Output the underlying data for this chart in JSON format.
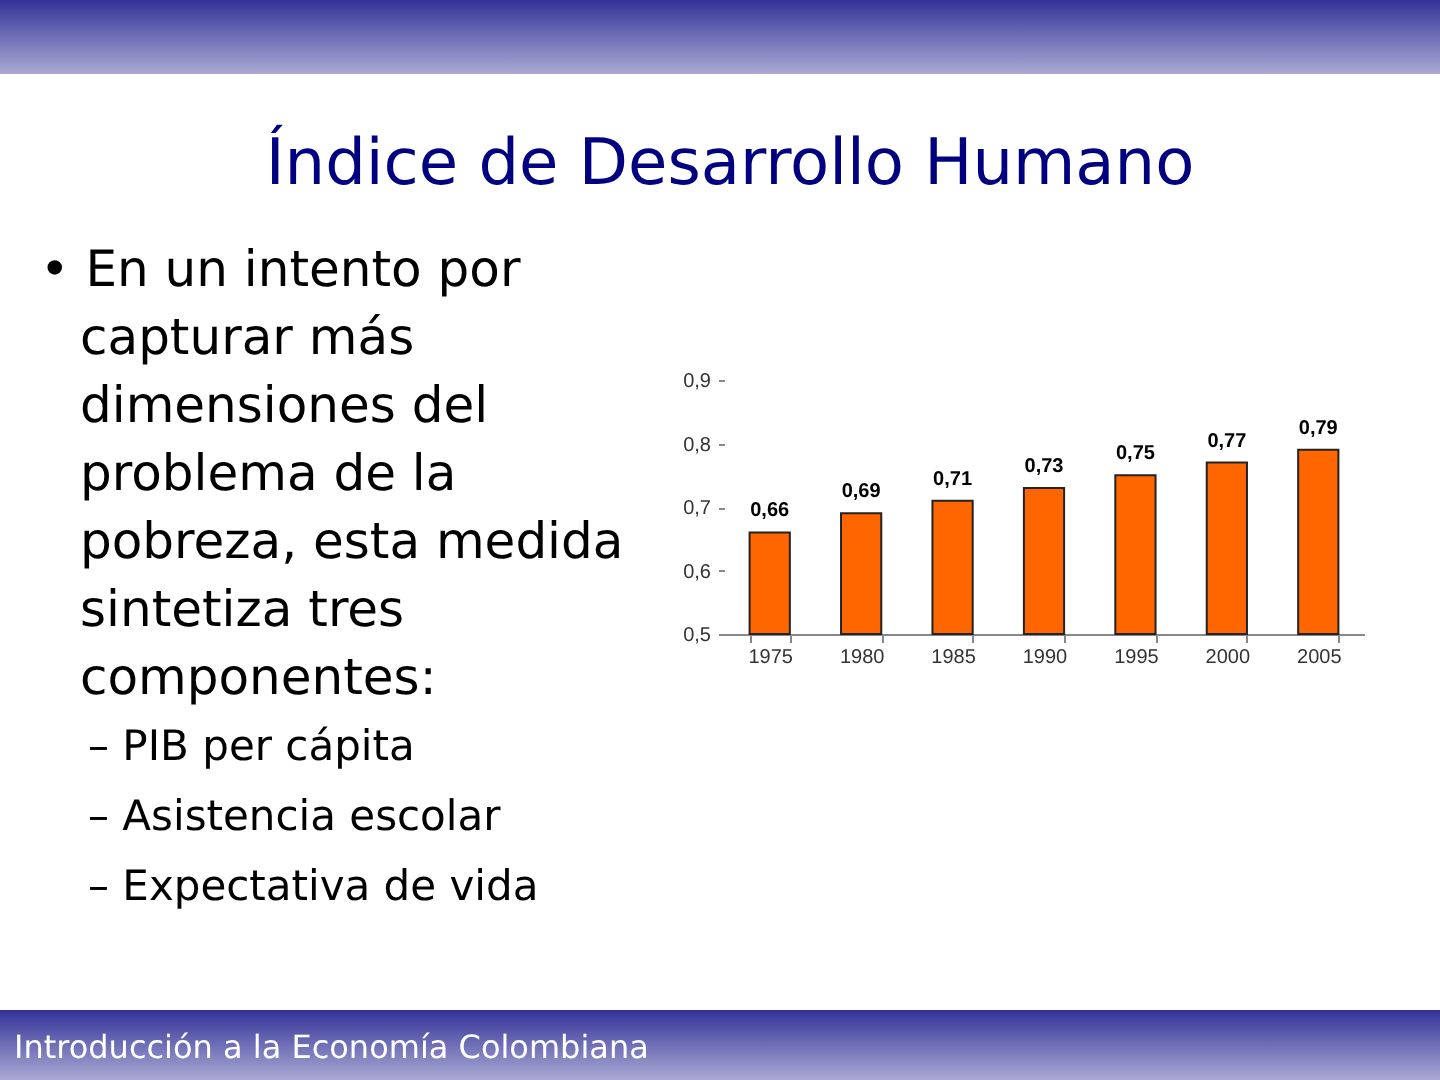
{
  "chart_data": {
    "type": "bar",
    "title": "Índice de Desarrollo Humano",
    "categories": [
      "1975",
      "1980",
      "1985",
      "1990",
      "1995",
      "2000",
      "2005"
    ],
    "values": [
      0.66,
      0.69,
      0.71,
      0.73,
      0.75,
      0.77,
      0.79
    ],
    "value_labels": [
      "0,66",
      "0,69",
      "0,71",
      "0,73",
      "0,75",
      "0,77",
      "0,79"
    ],
    "color": "#ff6600",
    "ylim": [
      0.5,
      0.9
    ],
    "yticks": [
      {
        "value": 0.5,
        "label": "0,5"
      },
      {
        "value": 0.6,
        "label": "0,6"
      },
      {
        "value": 0.7,
        "label": "0,7"
      },
      {
        "value": 0.8,
        "label": "0,8"
      },
      {
        "value": 0.9,
        "label": "0,9"
      }
    ],
    "grid": false,
    "annotations": [
      "• En un intento por capturar más dimensiones del problema de la pobreza, esta medida sintetiza tres componentes:",
      "– PIB per cápita",
      "– Asistencia escolar",
      "– Expectativa de vida",
      "Introducción a la Economía Colombiana"
    ]
  }
}
